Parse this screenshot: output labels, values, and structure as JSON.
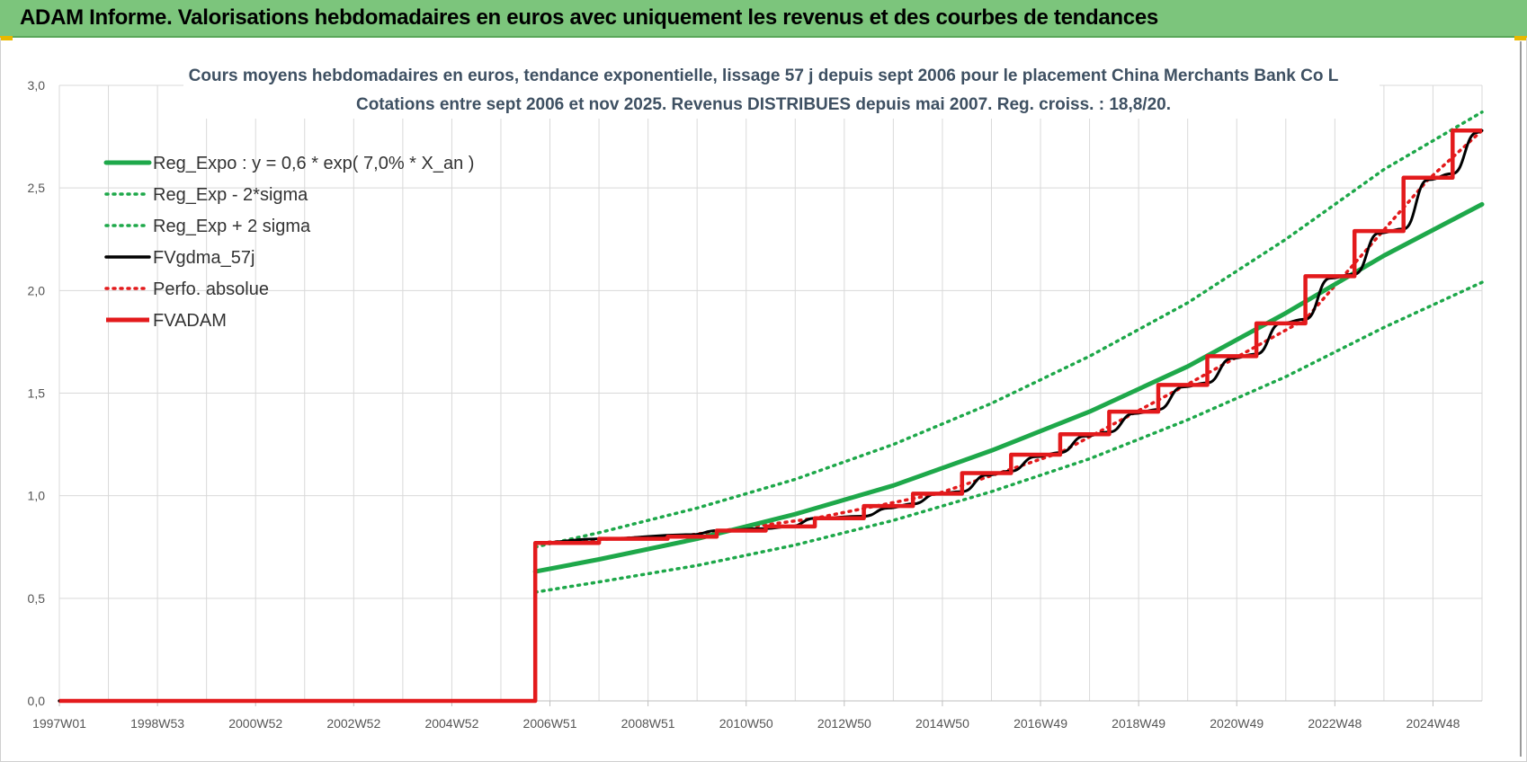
{
  "header": {
    "title": "ADAM Informe. Valorisations hebdomadaires en euros avec uniquement les revenus et des courbes de tendances"
  },
  "colors": {
    "header_bg": "#7cc57c",
    "grid": "#d9d9d9",
    "title_text": "#3e5062"
  },
  "chart_data": {
    "type": "line",
    "title": "Cours moyens hebdomadaires en euros, tendance exponentielle, lissage 57 j depuis sept 2006 pour le placement China Merchants Bank Co L",
    "subtitle": "Cotations entre sept 2006 et nov 2025. Revenus DISTRIBUES depuis mai 2007. Reg. croiss. : 18,8/20.",
    "xlabel": "",
    "ylabel": "",
    "x_tick_labels": [
      "1997W01",
      "1998W53",
      "2000W52",
      "2002W52",
      "2004W52",
      "2006W51",
      "2008W51",
      "2010W50",
      "2012W50",
      "2014W50",
      "2016W49",
      "2018W49",
      "2020W49",
      "2022W48",
      "2024W48"
    ],
    "y_tick_labels": [
      "0,0",
      "0,5",
      "1,0",
      "1,5",
      "2,0",
      "2,5",
      "3,0"
    ],
    "xlim": [
      1997.0,
      2026.0
    ],
    "ylim": [
      0,
      3
    ],
    "grid": true,
    "legend_position": "top-left",
    "series": [
      {
        "name": "Reg_Expo : y = 0,6 * exp( 7,0% *  X_an )",
        "color": "#1ea84a",
        "style": "solid",
        "points": [
          [
            2006.7,
            0.63
          ],
          [
            2008,
            0.69
          ],
          [
            2010,
            0.79
          ],
          [
            2012,
            0.91
          ],
          [
            2014,
            1.05
          ],
          [
            2016,
            1.22
          ],
          [
            2018,
            1.41
          ],
          [
            2020,
            1.63
          ],
          [
            2022,
            1.89
          ],
          [
            2024,
            2.17
          ],
          [
            2026,
            2.42
          ]
        ]
      },
      {
        "name": "Reg_Exp - 2*sigma",
        "color": "#1ea84a",
        "style": "dotted",
        "points": [
          [
            2006.7,
            0.53
          ],
          [
            2008,
            0.58
          ],
          [
            2010,
            0.66
          ],
          [
            2012,
            0.76
          ],
          [
            2014,
            0.88
          ],
          [
            2016,
            1.02
          ],
          [
            2018,
            1.18
          ],
          [
            2020,
            1.37
          ],
          [
            2022,
            1.58
          ],
          [
            2024,
            1.82
          ],
          [
            2026,
            2.04
          ]
        ]
      },
      {
        "name": "Reg_Exp + 2 sigma",
        "color": "#1ea84a",
        "style": "dotted",
        "points": [
          [
            2006.7,
            0.75
          ],
          [
            2008,
            0.82
          ],
          [
            2010,
            0.94
          ],
          [
            2012,
            1.08
          ],
          [
            2014,
            1.25
          ],
          [
            2016,
            1.45
          ],
          [
            2018,
            1.68
          ],
          [
            2020,
            1.94
          ],
          [
            2022,
            2.25
          ],
          [
            2024,
            2.59
          ],
          [
            2026,
            2.87
          ]
        ]
      },
      {
        "name": "FVgdma_57j",
        "color": "#000000",
        "style": "solid",
        "points": [
          [
            1997.0,
            0.0
          ],
          [
            2006.7,
            0.0
          ],
          [
            2006.7,
            0.77
          ],
          [
            2008,
            0.79
          ],
          [
            2009.9,
            0.81
          ],
          [
            2010.4,
            0.83
          ],
          [
            2011.4,
            0.84
          ],
          [
            2011.9,
            0.85
          ],
          [
            2012.4,
            0.89
          ],
          [
            2013.4,
            0.9
          ],
          [
            2013.9,
            0.94
          ],
          [
            2014.4,
            0.96
          ],
          [
            2014.9,
            1.01
          ],
          [
            2015.4,
            1.02
          ],
          [
            2015.9,
            1.1
          ],
          [
            2016.4,
            1.12
          ],
          [
            2016.9,
            1.19
          ],
          [
            2017.4,
            1.21
          ],
          [
            2017.9,
            1.29
          ],
          [
            2018.4,
            1.31
          ],
          [
            2018.9,
            1.4
          ],
          [
            2019.4,
            1.42
          ],
          [
            2019.9,
            1.53
          ],
          [
            2020.4,
            1.55
          ],
          [
            2020.9,
            1.67
          ],
          [
            2021.4,
            1.69
          ],
          [
            2021.9,
            1.84
          ],
          [
            2022.4,
            1.86
          ],
          [
            2022.9,
            2.06
          ],
          [
            2023.4,
            2.08
          ],
          [
            2023.9,
            2.28
          ],
          [
            2024.4,
            2.3
          ],
          [
            2024.9,
            2.54
          ],
          [
            2025.4,
            2.57
          ],
          [
            2025.9,
            2.77
          ],
          [
            2026.0,
            2.78
          ]
        ]
      },
      {
        "name": "Perfo. absolue",
        "color": "#e31a1c",
        "style": "dotted",
        "points": [
          [
            1997.0,
            0.0
          ],
          [
            2006.7,
            0.0
          ],
          [
            2006.7,
            0.77
          ],
          [
            2009.9,
            0.81
          ],
          [
            2012.4,
            0.89
          ],
          [
            2014.9,
            1.01
          ],
          [
            2017.4,
            1.21
          ],
          [
            2019.9,
            1.53
          ],
          [
            2022.4,
            1.86
          ],
          [
            2024.9,
            2.54
          ],
          [
            2026.0,
            2.78
          ]
        ]
      },
      {
        "name": "FVADAM",
        "color": "#e31a1c",
        "style": "step",
        "points": [
          [
            1997.0,
            0.0
          ],
          [
            2006.7,
            0.0
          ],
          [
            2006.7,
            0.77
          ],
          [
            2008.0,
            0.77
          ],
          [
            2008.0,
            0.79
          ],
          [
            2009.4,
            0.79
          ],
          [
            2009.4,
            0.8
          ],
          [
            2010.4,
            0.8
          ],
          [
            2010.4,
            0.83
          ],
          [
            2011.4,
            0.83
          ],
          [
            2011.4,
            0.85
          ],
          [
            2012.4,
            0.85
          ],
          [
            2012.4,
            0.89
          ],
          [
            2013.4,
            0.89
          ],
          [
            2013.4,
            0.95
          ],
          [
            2014.4,
            0.95
          ],
          [
            2014.4,
            1.01
          ],
          [
            2015.4,
            1.01
          ],
          [
            2015.4,
            1.11
          ],
          [
            2016.4,
            1.11
          ],
          [
            2016.4,
            1.2
          ],
          [
            2017.4,
            1.2
          ],
          [
            2017.4,
            1.3
          ],
          [
            2018.4,
            1.3
          ],
          [
            2018.4,
            1.41
          ],
          [
            2019.4,
            1.41
          ],
          [
            2019.4,
            1.54
          ],
          [
            2020.4,
            1.54
          ],
          [
            2020.4,
            1.68
          ],
          [
            2021.4,
            1.68
          ],
          [
            2021.4,
            1.84
          ],
          [
            2022.4,
            1.84
          ],
          [
            2022.4,
            2.07
          ],
          [
            2023.4,
            2.07
          ],
          [
            2023.4,
            2.29
          ],
          [
            2024.4,
            2.29
          ],
          [
            2024.4,
            2.55
          ],
          [
            2025.4,
            2.55
          ],
          [
            2025.4,
            2.78
          ],
          [
            2026.0,
            2.78
          ]
        ]
      }
    ]
  }
}
